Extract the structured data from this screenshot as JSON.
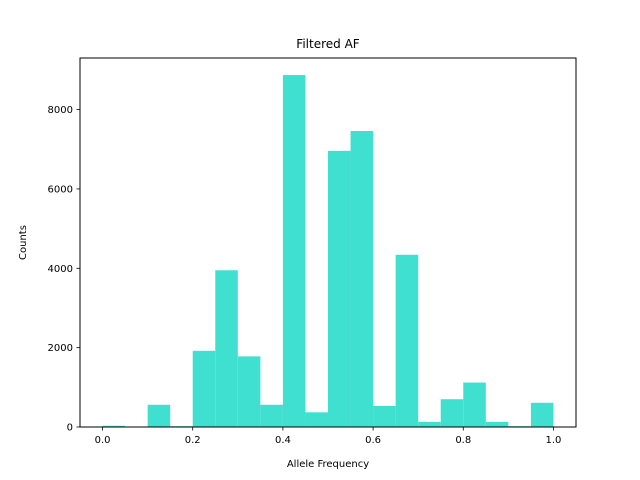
{
  "chart_data": {
    "type": "bar",
    "title": "Filtered AF",
    "xlabel": "Allele Frequency",
    "ylabel": "Counts",
    "xlim": [
      -0.05,
      1.05
    ],
    "ylim": [
      0,
      9300
    ],
    "xticks": [
      0.0,
      0.2,
      0.4,
      0.6,
      0.8,
      1.0
    ],
    "xtick_labels": [
      "0.0",
      "0.2",
      "0.4",
      "0.6",
      "0.8",
      "1.0"
    ],
    "yticks": [
      0,
      2000,
      4000,
      6000,
      8000
    ],
    "ytick_labels": [
      "0",
      "2000",
      "4000",
      "6000",
      "8000"
    ],
    "bin_width": 0.05,
    "bar_color": "#40e0d0",
    "bins": [
      {
        "x0": 0.0,
        "count": 30
      },
      {
        "x0": 0.05,
        "count": 0
      },
      {
        "x0": 0.1,
        "count": 560
      },
      {
        "x0": 0.15,
        "count": 20
      },
      {
        "x0": 0.2,
        "count": 1920
      },
      {
        "x0": 0.25,
        "count": 3950
      },
      {
        "x0": 0.3,
        "count": 1780
      },
      {
        "x0": 0.35,
        "count": 560
      },
      {
        "x0": 0.4,
        "count": 8870
      },
      {
        "x0": 0.45,
        "count": 370
      },
      {
        "x0": 0.5,
        "count": 6960
      },
      {
        "x0": 0.55,
        "count": 7460
      },
      {
        "x0": 0.6,
        "count": 530
      },
      {
        "x0": 0.65,
        "count": 4340
      },
      {
        "x0": 0.7,
        "count": 130
      },
      {
        "x0": 0.75,
        "count": 700
      },
      {
        "x0": 0.8,
        "count": 1120
      },
      {
        "x0": 0.85,
        "count": 130
      },
      {
        "x0": 0.9,
        "count": 20
      },
      {
        "x0": 0.95,
        "count": 610
      }
    ],
    "grid": false,
    "legend": "none"
  }
}
